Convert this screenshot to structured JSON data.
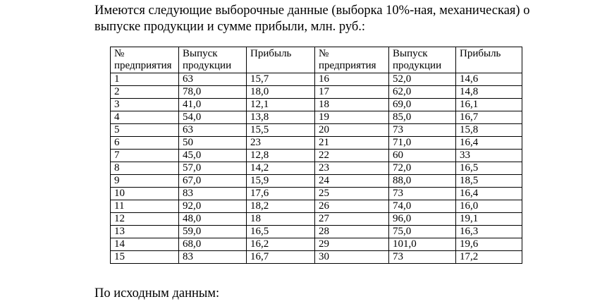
{
  "intro_text": "Имеются следующие выборочные данные (выборка 10%-ная, механическая) о выпуске продукции и сумме прибыли, млн. руб.:",
  "table": {
    "headers": [
      "№ предприятия",
      "Выпуск продукции",
      "Прибыль",
      "№ предприятия",
      "Выпуск продукции",
      "Прибыль"
    ],
    "rows": [
      [
        "1",
        "63",
        "15,7",
        "16",
        "52,0",
        "14,6"
      ],
      [
        "2",
        "78,0",
        "18,0",
        "17",
        "62,0",
        "14,8"
      ],
      [
        "3",
        "41,0",
        "12,1",
        "18",
        "69,0",
        "16,1"
      ],
      [
        "4",
        "54,0",
        "13,8",
        "19",
        "85,0",
        "16,7"
      ],
      [
        "5",
        "63",
        "15,5",
        "20",
        "73",
        "15,8"
      ],
      [
        "6",
        "50",
        "23",
        "21",
        "71,0",
        "16,4"
      ],
      [
        "7",
        "45,0",
        "12,8",
        "22",
        "60",
        "33"
      ],
      [
        "8",
        "57,0",
        "14,2",
        "23",
        "72,0",
        "16,5"
      ],
      [
        "9",
        "67,0",
        "15,9",
        "24",
        "88,0",
        "18,5"
      ],
      [
        "10",
        "83",
        "17,6",
        "25",
        "73",
        "16,4"
      ],
      [
        "11",
        "92,0",
        "18,2",
        "26",
        "74,0",
        "16,0"
      ],
      [
        "12",
        "48,0",
        "18",
        "27",
        "96,0",
        "19,1"
      ],
      [
        "13",
        "59,0",
        "16,5",
        "28",
        "75,0",
        "16,3"
      ],
      [
        "14",
        "68,0",
        "16,2",
        "29",
        "101,0",
        "19,6"
      ],
      [
        "15",
        "83",
        "16,7",
        "30",
        "73",
        "17,2"
      ]
    ]
  },
  "outro_text": "По исходным данным:"
}
